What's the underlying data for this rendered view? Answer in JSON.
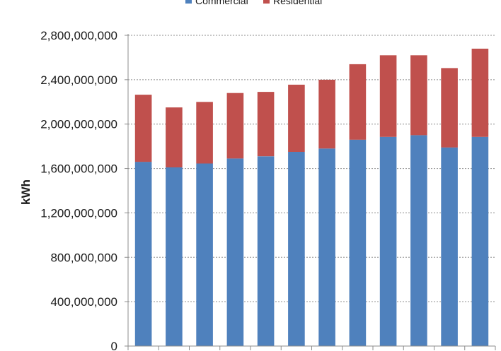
{
  "chart_data": {
    "type": "bar",
    "stacked": true,
    "ylabel": "kWh",
    "ylim": [
      0,
      2800000000
    ],
    "yticks": [
      0,
      400000000,
      800000000,
      1200000000,
      1600000000,
      2000000000,
      2400000000,
      2800000000
    ],
    "ytick_labels": [
      "0",
      "400,000,000",
      "800,000,000",
      "1,200,000,000",
      "1,600,000,000",
      "2,000,000,000",
      "2,400,000,000",
      "2,800,000,000"
    ],
    "grid": true,
    "legend": "top",
    "series": [
      {
        "name": "Commercial",
        "color": "#4f81bd",
        "values": [
          1660000000,
          1610000000,
          1645000000,
          1690000000,
          1710000000,
          1750000000,
          1780000000,
          1860000000,
          1885000000,
          1900000000,
          1790000000,
          1885000000
        ]
      },
      {
        "name": "Residential",
        "color": "#c0504d",
        "values": [
          605000000,
          540000000,
          555000000,
          590000000,
          580000000,
          605000000,
          620000000,
          680000000,
          735000000,
          720000000,
          715000000,
          795000000
        ]
      }
    ]
  }
}
